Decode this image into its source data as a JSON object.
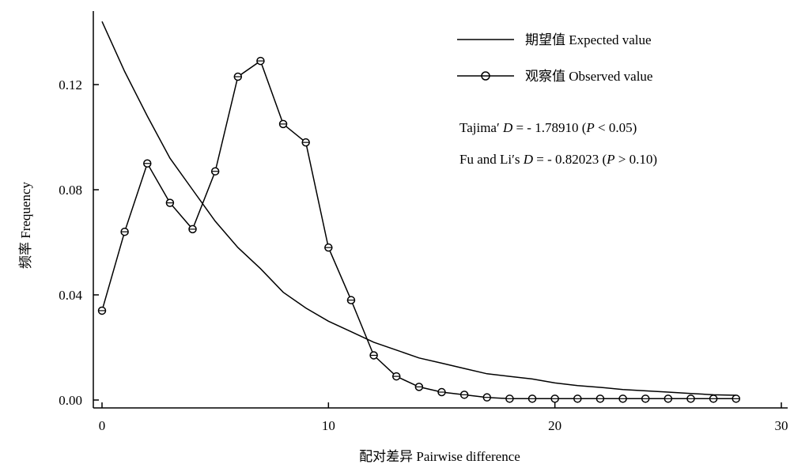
{
  "chart_data": {
    "type": "line",
    "title": "",
    "xlabel": "配对差异  Pairwise difference",
    "ylabel": "频率  Frequency",
    "xlim": [
      0,
      30
    ],
    "ylim": [
      0,
      0.145
    ],
    "xticks": [
      0,
      10,
      20,
      30
    ],
    "yticks": [
      0.0,
      0.04,
      0.08,
      0.12
    ],
    "xtick_labels": [
      "0",
      "10",
      "20",
      "30"
    ],
    "ytick_labels": [
      "0.00",
      "0.04",
      "0.08",
      "0.12"
    ],
    "grid": false,
    "legend_position": "top-right",
    "series": [
      {
        "name": "期望值  Expected value",
        "marker": "none",
        "x": [
          0,
          1,
          2,
          3,
          4,
          5,
          6,
          7,
          8,
          9,
          10,
          11,
          12,
          13,
          14,
          15,
          16,
          17,
          18,
          19,
          20,
          21,
          22,
          23,
          24,
          25,
          26,
          27,
          28
        ],
        "values": [
          0.144,
          0.125,
          0.108,
          0.092,
          0.08,
          0.068,
          0.058,
          0.05,
          0.041,
          0.035,
          0.03,
          0.026,
          0.022,
          0.019,
          0.016,
          0.014,
          0.012,
          0.01,
          0.009,
          0.008,
          0.0065,
          0.0055,
          0.0048,
          0.004,
          0.0035,
          0.003,
          0.0025,
          0.002,
          0.0018
        ]
      },
      {
        "name": "观察值  Observed value",
        "marker": "circle",
        "x": [
          0,
          1,
          2,
          3,
          4,
          5,
          6,
          7,
          8,
          9,
          10,
          11,
          12,
          13,
          14,
          15,
          16,
          17,
          18,
          19,
          20,
          21,
          22,
          23,
          24,
          25,
          26,
          27,
          28
        ],
        "values": [
          0.034,
          0.064,
          0.09,
          0.075,
          0.065,
          0.087,
          0.123,
          0.129,
          0.105,
          0.098,
          0.058,
          0.038,
          0.017,
          0.009,
          0.005,
          0.003,
          0.002,
          0.001,
          0.0005,
          0.0005,
          0.0005,
          0.0005,
          0.0005,
          0.0005,
          0.0005,
          0.0005,
          0.0005,
          0.0005,
          0.0005
        ]
      }
    ],
    "annotations": {
      "tajima": {
        "prefix": "Tajima′ ",
        "var": "D",
        "eq": " = - 1.78910 (",
        "p": "P",
        "rest": " < 0.05)"
      },
      "fuli": {
        "prefix": "Fu and Li′s ",
        "var": "D",
        "eq": " = - 0.82023 (",
        "p": "P",
        "rest": " > 0.10)"
      }
    }
  }
}
